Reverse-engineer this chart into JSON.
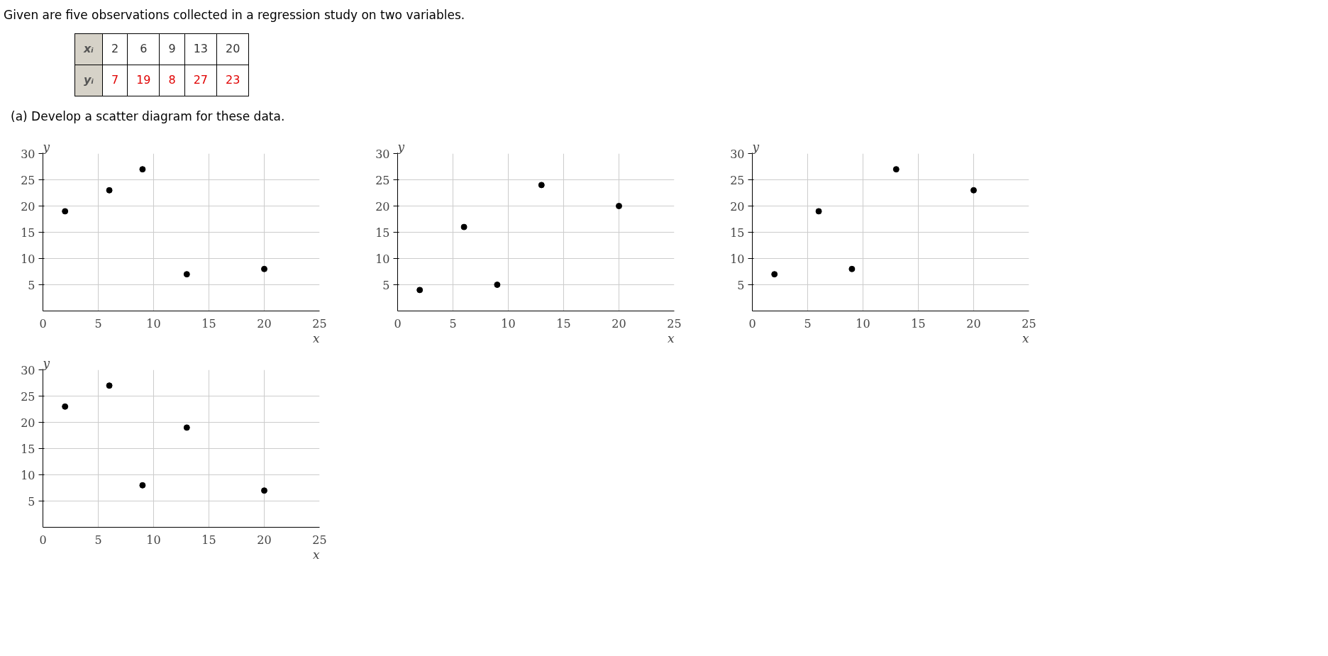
{
  "chart_data": [
    {
      "type": "other",
      "title": "Given are five observations collected in a regression study on two variables.",
      "subtitle": "(a)   Develop a scatter diagram for these data.",
      "annotations": [
        "xᵢ",
        "2",
        "6",
        "9",
        "13",
        "20",
        "yᵢ",
        "7",
        "19",
        "8",
        "27",
        "23"
      ]
    },
    {
      "type": "scatter",
      "x": [
        2,
        6,
        9,
        13,
        20
      ],
      "values": [
        19,
        23,
        27,
        7,
        8
      ],
      "color": "#000000",
      "marker": "circle",
      "xlim": [
        0,
        25
      ],
      "ylim": [
        0,
        30
      ],
      "xticks": [
        0,
        5,
        10,
        15,
        20,
        25
      ],
      "yticks": [
        5,
        10,
        15,
        20,
        25,
        30
      ],
      "xlabel": "x",
      "ylabel": "y",
      "grid": true
    },
    {
      "type": "scatter",
      "x": [
        2,
        6,
        9,
        13,
        20
      ],
      "values": [
        4,
        16,
        5,
        24,
        20
      ],
      "color": "#000000",
      "marker": "circle",
      "xlim": [
        0,
        25
      ],
      "ylim": [
        0,
        30
      ],
      "xticks": [
        0,
        5,
        10,
        15,
        20,
        25
      ],
      "yticks": [
        5,
        10,
        15,
        20,
        25,
        30
      ],
      "xlabel": "x",
      "ylabel": "y",
      "grid": true
    },
    {
      "type": "scatter",
      "x": [
        2,
        6,
        9,
        13,
        20
      ],
      "values": [
        7,
        19,
        8,
        27,
        23
      ],
      "color": "#000000",
      "marker": "circle",
      "xlim": [
        0,
        25
      ],
      "ylim": [
        0,
        30
      ],
      "xticks": [
        0,
        5,
        10,
        15,
        20,
        25
      ],
      "yticks": [
        5,
        10,
        15,
        20,
        25,
        30
      ],
      "xlabel": "x",
      "ylabel": "y",
      "grid": true
    },
    {
      "type": "scatter",
      "x": [
        2,
        6,
        9,
        13,
        20
      ],
      "values": [
        23,
        27,
        8,
        19,
        7
      ],
      "color": "#000000",
      "marker": "circle",
      "xlim": [
        0,
        25
      ],
      "ylim": [
        0,
        30
      ],
      "xticks": [
        0,
        5,
        10,
        15,
        20,
        25
      ],
      "yticks": [
        5,
        10,
        15,
        20,
        25,
        30
      ],
      "xlabel": "x",
      "ylabel": "y",
      "grid": true
    }
  ]
}
